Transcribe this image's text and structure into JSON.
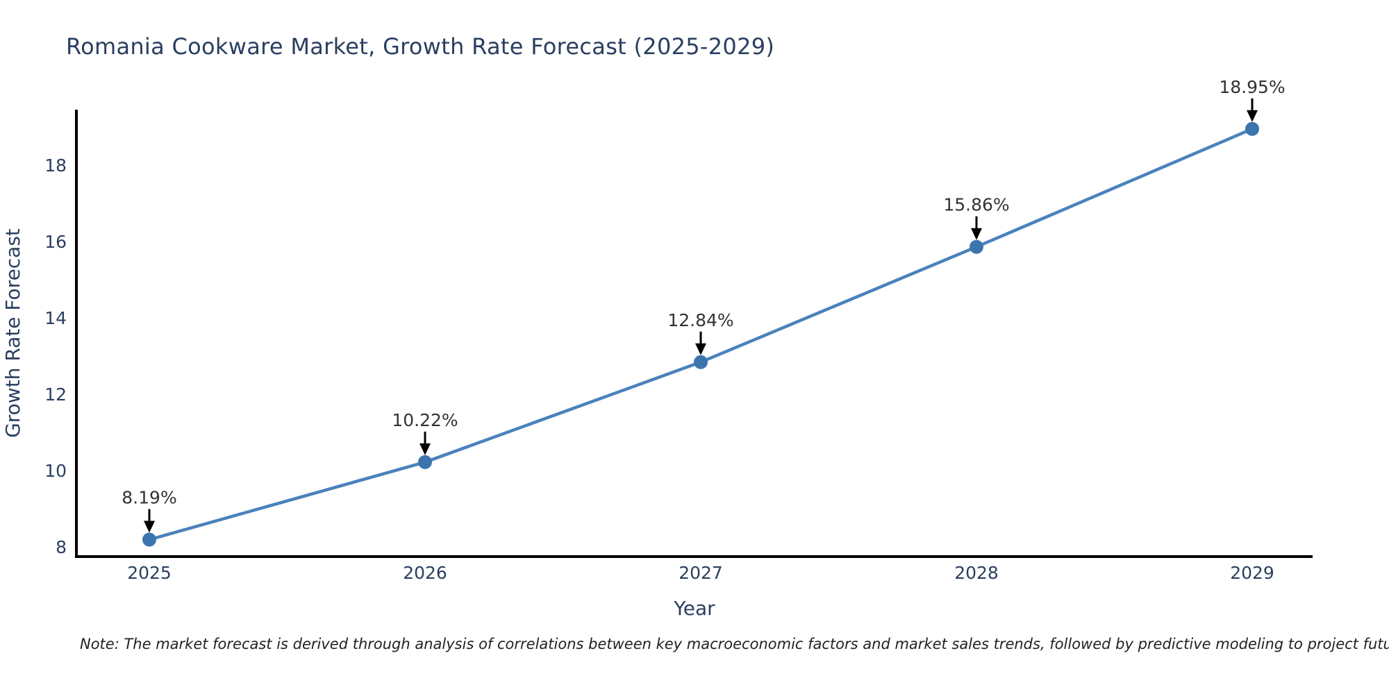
{
  "note": "Note: The market forecast is derived through analysis of correlations between key macroeconomic factors and market sales trends, followed by predictive modeling to project future sales.",
  "style": {
    "line": "#4a82bc",
    "marker": "#3c74ae",
    "arrow": "#000000",
    "axis": "#000000",
    "title_text": "#2a3f5f",
    "tick_text": "#2a3f5f",
    "annotation_text": "#333333"
  },
  "chart_data": {
    "type": "line",
    "title": "Romania Cookware Market, Growth Rate Forecast (2025-2029)",
    "xlabel": "Year",
    "ylabel": "Growth Rate Forecast",
    "x": [
      2025,
      2026,
      2027,
      2028,
      2029
    ],
    "values": [
      8.19,
      10.22,
      12.84,
      15.86,
      18.95
    ],
    "point_labels": [
      "8.19%",
      "10.22%",
      "12.84%",
      "15.86%",
      "18.95%"
    ],
    "yticks": [
      8,
      10,
      12,
      14,
      16,
      18
    ],
    "ylim": [
      7.75,
      19.4
    ],
    "grid": false,
    "legend": "none",
    "annotation_style": "black downward arrows from value labels to markers"
  }
}
